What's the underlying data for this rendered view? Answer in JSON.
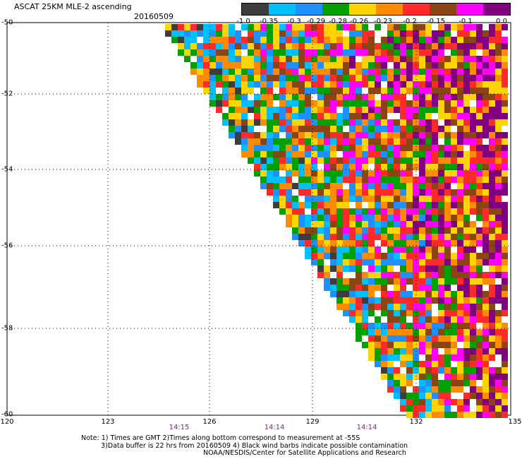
{
  "header": {
    "title": "ASCAT 25KM MLE-2 ascending",
    "date": "20160509"
  },
  "legend": {
    "colors": [
      "#3d3d3d",
      "#00bfff",
      "#1e90ff",
      "#00a000",
      "#ffd400",
      "#ff8c00",
      "#ff2a2a",
      "#8b4513",
      "#ff00ff",
      "#800080"
    ],
    "labels": [
      "-1.0",
      "-0.35",
      "-0.3",
      "-0.29",
      "-0.28",
      "-0.26",
      "-0.23",
      "-0.2",
      "-0.15",
      "-0.1",
      "0.0"
    ]
  },
  "axes": {
    "lat_labels": [
      "-50",
      "-52",
      "-54",
      "-56",
      "-58",
      "-60"
    ],
    "lon_labels": [
      "120",
      "123",
      "126",
      "129",
      "132",
      "135"
    ],
    "time_labels": [
      "14:15",
      "14:14",
      "14:14"
    ]
  },
  "notes": {
    "line1": "Note: 1) Times are GMT 2)Times along bottom correspond to measurement at -55S",
    "line2": "3)Data buffer is 22 hrs from 20160509 4) Black wind barbs indicate possible contamination",
    "line3": "NOAA/NESDIS/Center for Satellite Applications and Research"
  }
}
